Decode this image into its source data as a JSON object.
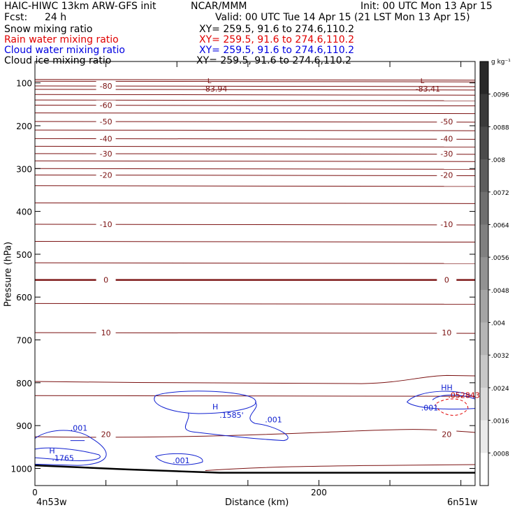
{
  "header": {
    "model": "HAIC-HIWC 13km ARW-GFS init",
    "org": "NCAR/MMM",
    "init": "Init: 00 UTC Mon 13 Apr 15",
    "fcst_label": "Fcst:",
    "fcst_value": "24 h",
    "valid": "Valid: 00 UTC Tue 14 Apr 15 (21 LST Mon 13 Apr 15)"
  },
  "fields": [
    {
      "name": "Snow mixing ratio",
      "xy": "XY= 259.5, 91.6 to 274.6,110.2",
      "color": "#000000"
    },
    {
      "name": "Rain water mixing ratio",
      "xy": "XY= 259.5, 91.6 to 274.6,110.2",
      "color": "#e00000"
    },
    {
      "name": "Cloud water mixing ratio",
      "xy": "XY= 259.5, 91.6 to 274.6,110.2",
      "color": "#0000e0"
    },
    {
      "name": "Cloud ice mixing ratio",
      "xy": "XY= 259.5, 91.6 to 274.6,110.2",
      "color": "#000000"
    }
  ],
  "chart_data": {
    "type": "contour cross-section",
    "xlabel": "Distance (km)",
    "ylabel": "Pressure (hPa)",
    "xlim": [
      0,
      310
    ],
    "ylim": [
      1040,
      50
    ],
    "x_ticks": [
      0,
      50,
      100,
      150,
      200,
      250,
      300
    ],
    "x_tick_labels": [
      "0",
      "",
      "",
      "",
      "200",
      "",
      ""
    ],
    "y_ticks": [
      100,
      200,
      300,
      400,
      500,
      600,
      700,
      800,
      900,
      1000
    ],
    "left_endpoint": "4n53w",
    "right_endpoint": "6n51w",
    "temperature_contours": [
      {
        "label": "-80",
        "p": 107
      },
      {
        "label": "-60",
        "p": 152
      },
      {
        "label": "-50",
        "p": 190
      },
      {
        "label": "-40",
        "p": 230
      },
      {
        "label": "-30",
        "p": 265
      },
      {
        "label": "-20",
        "p": 315
      },
      {
        "label": "-10",
        "p": 430
      },
      {
        "label": "0",
        "p": 560
      },
      {
        "label": "10",
        "p": 683
      },
      {
        "label": "20",
        "p": 920
      }
    ],
    "extrema_low": [
      {
        "label": "L",
        "value": "-83.94",
        "x": 120,
        "p": 92
      },
      {
        "label": "L",
        "value": "-83.41",
        "x": 270,
        "p": 92
      }
    ],
    "cloud_water_labels": [
      {
        "text": "H",
        "x": 125,
        "p": 862
      },
      {
        "text": ".1585'",
        "x": 130,
        "p": 882
      },
      {
        "text": ".001",
        "x": 162,
        "p": 892
      },
      {
        "text": ".001",
        "x": 25,
        "p": 912
      },
      {
        "text": "H",
        "x": 10,
        "p": 965
      },
      {
        "text": ".1765",
        "x": 12,
        "p": 982
      },
      {
        "text": ".001",
        "x": 97,
        "p": 988
      },
      {
        "text": "HH",
        "x": 286,
        "p": 817
      },
      {
        "text": ".001",
        "x": 272,
        "p": 865
      }
    ],
    "rain_labels": [
      {
        "text": ".052843",
        "x": 291,
        "p": 835
      }
    ],
    "colorbar": {
      "units": "g kg⁻¹",
      "ticks": [
        ".0096",
        ".0088",
        ".008",
        ".0072",
        ".0064",
        ".0056",
        ".0048",
        ".004",
        ".0032",
        ".0024",
        ".0016",
        ".0008"
      ]
    }
  }
}
